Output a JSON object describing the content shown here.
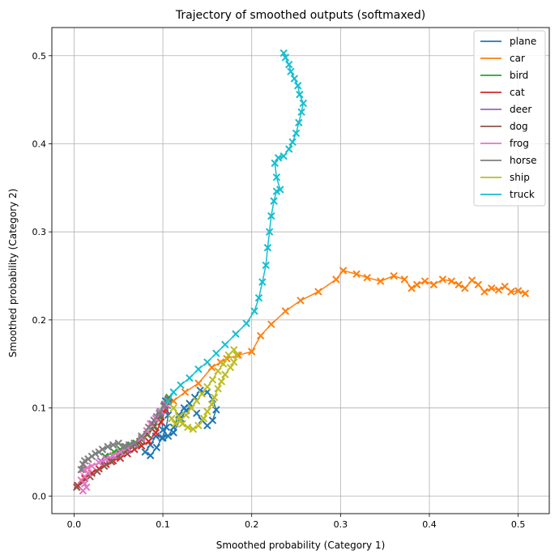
{
  "chart_data": {
    "type": "line",
    "title": "Trajectory of smoothed outputs (softmaxed)",
    "xlabel": "Smoothed probability (Category 1)",
    "ylabel": "Smoothed probability (Category 2)",
    "xlim": [
      -0.025,
      0.535
    ],
    "ylim": [
      -0.02,
      0.532
    ],
    "xticks": [
      0.0,
      0.1,
      0.2,
      0.3,
      0.4,
      0.5
    ],
    "xtick_labels": [
      "0.0",
      "0.1",
      "0.2",
      "0.3",
      "0.4",
      "0.5"
    ],
    "yticks": [
      0.0,
      0.1,
      0.2,
      0.3,
      0.4,
      0.5
    ],
    "ytick_labels": [
      "0.0",
      "0.1",
      "0.2",
      "0.3",
      "0.4",
      "0.5"
    ],
    "grid": true,
    "legend_position": "top-right",
    "marker": "x",
    "series": [
      {
        "name": "plane",
        "color": "#1f77b4",
        "points": [
          [
            0.103,
            0.108
          ],
          [
            0.098,
            0.09
          ],
          [
            0.1,
            0.075
          ],
          [
            0.106,
            0.068
          ],
          [
            0.112,
            0.078
          ],
          [
            0.118,
            0.092
          ],
          [
            0.124,
            0.1
          ],
          [
            0.13,
            0.105
          ],
          [
            0.136,
            0.112
          ],
          [
            0.142,
            0.12
          ],
          [
            0.15,
            0.118
          ],
          [
            0.156,
            0.11
          ],
          [
            0.16,
            0.098
          ],
          [
            0.156,
            0.086
          ],
          [
            0.15,
            0.08
          ],
          [
            0.144,
            0.086
          ],
          [
            0.138,
            0.094
          ],
          [
            0.132,
            0.1
          ],
          [
            0.126,
            0.097
          ],
          [
            0.12,
            0.088
          ],
          [
            0.112,
            0.072
          ],
          [
            0.1,
            0.066
          ],
          [
            0.092,
            0.068
          ],
          [
            0.086,
            0.058
          ],
          [
            0.08,
            0.05
          ],
          [
            0.086,
            0.046
          ],
          [
            0.093,
            0.055
          ],
          [
            0.099,
            0.066
          ],
          [
            0.104,
            0.078
          ],
          [
            0.106,
            0.092
          ],
          [
            0.105,
            0.103
          ]
        ]
      },
      {
        "name": "car",
        "color": "#ff7f0e",
        "points": [
          [
            0.112,
            0.108
          ],
          [
            0.125,
            0.118
          ],
          [
            0.14,
            0.128
          ],
          [
            0.155,
            0.146
          ],
          [
            0.165,
            0.152
          ],
          [
            0.172,
            0.156
          ],
          [
            0.185,
            0.16
          ],
          [
            0.2,
            0.164
          ],
          [
            0.21,
            0.182
          ],
          [
            0.222,
            0.195
          ],
          [
            0.238,
            0.21
          ],
          [
            0.255,
            0.222
          ],
          [
            0.275,
            0.232
          ],
          [
            0.295,
            0.246
          ],
          [
            0.303,
            0.256
          ],
          [
            0.318,
            0.252
          ],
          [
            0.33,
            0.248
          ],
          [
            0.345,
            0.244
          ],
          [
            0.36,
            0.25
          ],
          [
            0.372,
            0.246
          ],
          [
            0.38,
            0.236
          ],
          [
            0.386,
            0.24
          ],
          [
            0.395,
            0.244
          ],
          [
            0.405,
            0.24
          ],
          [
            0.415,
            0.246
          ],
          [
            0.425,
            0.244
          ],
          [
            0.433,
            0.24
          ],
          [
            0.44,
            0.236
          ],
          [
            0.448,
            0.245
          ],
          [
            0.455,
            0.24
          ],
          [
            0.462,
            0.232
          ],
          [
            0.47,
            0.236
          ],
          [
            0.478,
            0.234
          ],
          [
            0.485,
            0.238
          ],
          [
            0.492,
            0.232
          ],
          [
            0.5,
            0.233
          ],
          [
            0.508,
            0.23
          ]
        ]
      },
      {
        "name": "bird",
        "color": "#2ca02c",
        "points": [
          [
            0.035,
            0.045
          ],
          [
            0.045,
            0.05
          ],
          [
            0.052,
            0.053
          ],
          [
            0.058,
            0.056
          ],
          [
            0.064,
            0.058
          ],
          [
            0.07,
            0.06
          ],
          [
            0.076,
            0.064
          ],
          [
            0.083,
            0.07
          ],
          [
            0.09,
            0.078
          ],
          [
            0.096,
            0.09
          ],
          [
            0.102,
            0.104
          ],
          [
            0.107,
            0.112
          ]
        ]
      },
      {
        "name": "cat",
        "color": "#d62728",
        "points": [
          [
            0.004,
            0.012
          ],
          [
            0.012,
            0.02
          ],
          [
            0.02,
            0.026
          ],
          [
            0.028,
            0.031
          ],
          [
            0.036,
            0.036
          ],
          [
            0.044,
            0.04
          ],
          [
            0.052,
            0.043
          ],
          [
            0.06,
            0.048
          ],
          [
            0.068,
            0.053
          ],
          [
            0.076,
            0.057
          ],
          [
            0.084,
            0.062
          ],
          [
            0.092,
            0.072
          ],
          [
            0.098,
            0.084
          ],
          [
            0.103,
            0.098
          ],
          [
            0.106,
            0.106
          ]
        ]
      },
      {
        "name": "deer",
        "color": "#9467bd",
        "points": [
          [
            0.03,
            0.04
          ],
          [
            0.04,
            0.042
          ],
          [
            0.05,
            0.046
          ],
          [
            0.06,
            0.052
          ],
          [
            0.068,
            0.058
          ],
          [
            0.076,
            0.066
          ],
          [
            0.082,
            0.074
          ],
          [
            0.088,
            0.082
          ],
          [
            0.093,
            0.09
          ],
          [
            0.097,
            0.096
          ],
          [
            0.102,
            0.104
          ],
          [
            0.106,
            0.11
          ]
        ]
      },
      {
        "name": "dog",
        "color": "#8c564b",
        "points": [
          [
            0.003,
            0.01
          ],
          [
            0.01,
            0.016
          ],
          [
            0.018,
            0.022
          ],
          [
            0.026,
            0.028
          ],
          [
            0.034,
            0.034
          ],
          [
            0.042,
            0.039
          ],
          [
            0.05,
            0.045
          ],
          [
            0.058,
            0.05
          ],
          [
            0.066,
            0.056
          ],
          [
            0.074,
            0.062
          ],
          [
            0.082,
            0.07
          ],
          [
            0.09,
            0.08
          ],
          [
            0.097,
            0.092
          ],
          [
            0.102,
            0.102
          ],
          [
            0.106,
            0.11
          ]
        ]
      },
      {
        "name": "frog",
        "color": "#e377c2",
        "points": [
          [
            0.01,
            0.006
          ],
          [
            0.014,
            0.01
          ],
          [
            0.012,
            0.014
          ],
          [
            0.008,
            0.018
          ],
          [
            0.012,
            0.022
          ],
          [
            0.016,
            0.026
          ],
          [
            0.01,
            0.03
          ],
          [
            0.015,
            0.032
          ],
          [
            0.02,
            0.034
          ],
          [
            0.028,
            0.038
          ],
          [
            0.036,
            0.042
          ],
          [
            0.044,
            0.046
          ],
          [
            0.052,
            0.05
          ],
          [
            0.06,
            0.055
          ],
          [
            0.068,
            0.06
          ],
          [
            0.076,
            0.066
          ],
          [
            0.082,
            0.074
          ],
          [
            0.086,
            0.082
          ],
          [
            0.092,
            0.088
          ],
          [
            0.098,
            0.096
          ],
          [
            0.104,
            0.104
          ]
        ]
      },
      {
        "name": "horse",
        "color": "#7f7f7f",
        "points": [
          [
            0.008,
            0.03
          ],
          [
            0.01,
            0.036
          ],
          [
            0.012,
            0.04
          ],
          [
            0.016,
            0.042
          ],
          [
            0.02,
            0.045
          ],
          [
            0.024,
            0.048
          ],
          [
            0.028,
            0.05
          ],
          [
            0.032,
            0.053
          ],
          [
            0.038,
            0.056
          ],
          [
            0.044,
            0.058
          ],
          [
            0.05,
            0.06
          ],
          [
            0.056,
            0.056
          ],
          [
            0.062,
            0.058
          ],
          [
            0.068,
            0.06
          ],
          [
            0.076,
            0.068
          ],
          [
            0.084,
            0.078
          ],
          [
            0.09,
            0.086
          ],
          [
            0.096,
            0.094
          ],
          [
            0.101,
            0.102
          ],
          [
            0.105,
            0.108
          ]
        ]
      },
      {
        "name": "ship",
        "color": "#bcbd22",
        "points": [
          [
            0.106,
            0.108
          ],
          [
            0.112,
            0.1
          ],
          [
            0.118,
            0.09
          ],
          [
            0.122,
            0.082
          ],
          [
            0.128,
            0.078
          ],
          [
            0.134,
            0.076
          ],
          [
            0.14,
            0.08
          ],
          [
            0.146,
            0.088
          ],
          [
            0.15,
            0.096
          ],
          [
            0.155,
            0.104
          ],
          [
            0.158,
            0.112
          ],
          [
            0.162,
            0.122
          ],
          [
            0.166,
            0.13
          ],
          [
            0.17,
            0.138
          ],
          [
            0.176,
            0.146
          ],
          [
            0.18,
            0.152
          ],
          [
            0.183,
            0.16
          ],
          [
            0.18,
            0.166
          ],
          [
            0.174,
            0.16
          ],
          [
            0.168,
            0.15
          ],
          [
            0.162,
            0.142
          ],
          [
            0.156,
            0.132
          ],
          [
            0.15,
            0.124
          ],
          [
            0.144,
            0.116
          ],
          [
            0.138,
            0.108
          ],
          [
            0.132,
            0.1
          ],
          [
            0.126,
            0.092
          ],
          [
            0.12,
            0.086
          ],
          [
            0.114,
            0.082
          ],
          [
            0.11,
            0.088
          ]
        ]
      },
      {
        "name": "truck",
        "color": "#17becf",
        "points": [
          [
            0.106,
            0.108
          ],
          [
            0.112,
            0.118
          ],
          [
            0.12,
            0.126
          ],
          [
            0.13,
            0.134
          ],
          [
            0.14,
            0.144
          ],
          [
            0.15,
            0.152
          ],
          [
            0.16,
            0.162
          ],
          [
            0.17,
            0.172
          ],
          [
            0.182,
            0.184
          ],
          [
            0.194,
            0.196
          ],
          [
            0.203,
            0.21
          ],
          [
            0.208,
            0.225
          ],
          [
            0.212,
            0.243
          ],
          [
            0.216,
            0.262
          ],
          [
            0.218,
            0.282
          ],
          [
            0.22,
            0.3
          ],
          [
            0.222,
            0.318
          ],
          [
            0.225,
            0.335
          ],
          [
            0.228,
            0.346
          ],
          [
            0.232,
            0.348
          ],
          [
            0.228,
            0.362
          ],
          [
            0.226,
            0.378
          ],
          [
            0.23,
            0.384
          ],
          [
            0.236,
            0.386
          ],
          [
            0.242,
            0.394
          ],
          [
            0.246,
            0.402
          ],
          [
            0.25,
            0.412
          ],
          [
            0.253,
            0.424
          ],
          [
            0.256,
            0.436
          ],
          [
            0.258,
            0.446
          ],
          [
            0.254,
            0.456
          ],
          [
            0.252,
            0.466
          ],
          [
            0.248,
            0.474
          ],
          [
            0.244,
            0.482
          ],
          [
            0.242,
            0.49
          ],
          [
            0.238,
            0.498
          ],
          [
            0.236,
            0.503
          ]
        ]
      }
    ]
  }
}
